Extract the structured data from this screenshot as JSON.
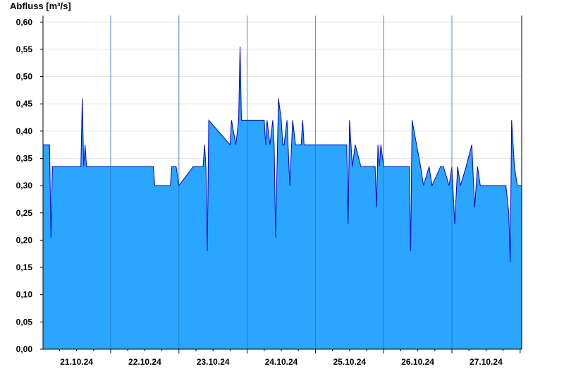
{
  "chart_data": {
    "type": "area",
    "ylabel": "Abfluss [m³/s]",
    "xlabel": "",
    "ylim": [
      0,
      0.612
    ],
    "x_start": "2024-10-21",
    "x_end": "2024-10-28",
    "yticks": [
      "0,00",
      "0,05",
      "0,10",
      "0,15",
      "0,20",
      "0,25",
      "0,30",
      "0,35",
      "0,40",
      "0,45",
      "0,50",
      "0,55",
      "0,60"
    ],
    "ytick_values": [
      0,
      0.05,
      0.1,
      0.15,
      0.2,
      0.25,
      0.3,
      0.35,
      0.4,
      0.45,
      0.5,
      0.55,
      0.6
    ],
    "xticks": [
      "21.10.24",
      "22.10.24",
      "23.10.24",
      "24.10.24",
      "25.10.24",
      "26.10.24",
      "27.10.24"
    ],
    "grid": true,
    "fill_color": "#2ba6ff",
    "line_color": "#0000cc",
    "series": [
      {
        "x": [
          "2024-10-20 16:00",
          "2024-10-21 02:30",
          "2024-10-21 03:00",
          "2024-10-21 03:30",
          "2024-10-21 04:00",
          "2024-10-21 13:30",
          "2024-10-21 14:00",
          "2024-10-21 14:30",
          "2024-10-21 15:00",
          "2024-10-21 15:30",
          "2024-10-21 16:00",
          "2024-10-22 15:00",
          "2024-10-22 15:30",
          "2024-10-22 16:00",
          "2024-10-22 21:00",
          "2024-10-22 21:30",
          "2024-10-22 23:00",
          "2024-10-23 00:00",
          "2024-10-23 05:00",
          "2024-10-23 05:30",
          "2024-10-23 06:00",
          "2024-10-23 08:30",
          "2024-10-23 09:00",
          "2024-10-23 09:30",
          "2024-10-23 10:00",
          "2024-10-23 10:30",
          "2024-10-23 18:00",
          "2024-10-23 18:30",
          "2024-10-23 20:00",
          "2024-10-23 21:00",
          "2024-10-23 21:30",
          "2024-10-23 22:00",
          "2024-10-23 22:30",
          "2024-10-23 23:00",
          "2024-10-24 06:00",
          "2024-10-24 06:30",
          "2024-10-24 07:00",
          "2024-10-24 08:00",
          "2024-10-24 09:00",
          "2024-10-24 09:30",
          "2024-10-24 10:00",
          "2024-10-24 11:00",
          "2024-10-24 12:00",
          "2024-10-24 12:30",
          "2024-10-24 13:00",
          "2024-10-24 14:00",
          "2024-10-24 15:00",
          "2024-10-24 16:00",
          "2024-10-24 17:00",
          "2024-10-24 18:00",
          "2024-10-24 19:00",
          "2024-10-24 19:30",
          "2024-10-24 20:00",
          "2024-10-24 21:00",
          "2024-10-25 11:00",
          "2024-10-25 11:30",
          "2024-10-25 12:00",
          "2024-10-25 13:00",
          "2024-10-25 14:00",
          "2024-10-25 16:00",
          "2024-10-25 17:00",
          "2024-10-25 21:00",
          "2024-10-25 21:30",
          "2024-10-25 22:00",
          "2024-10-25 22:30",
          "2024-10-25 23:00",
          "2024-10-26 00:00",
          "2024-10-26 09:00",
          "2024-10-26 09:30",
          "2024-10-26 10:00",
          "2024-10-26 13:00",
          "2024-10-26 14:00",
          "2024-10-26 16:00",
          "2024-10-26 17:00",
          "2024-10-26 20:00",
          "2024-10-26 21:00",
          "2024-10-26 23:00",
          "2024-10-27 00:00",
          "2024-10-27 01:00",
          "2024-10-27 02:00",
          "2024-10-27 03:00",
          "2024-10-27 05:00",
          "2024-10-27 07:00",
          "2024-10-27 08:00",
          "2024-10-27 09:00",
          "2024-10-27 10:00",
          "2024-10-27 13:00",
          "2024-10-27 19:00",
          "2024-10-27 20:00",
          "2024-10-27 20:30",
          "2024-10-27 21:00",
          "2024-10-27 22:00",
          "2024-10-27 23:00",
          "2024-10-28 00:00"
        ],
        "values": [
          0.375,
          0.375,
          0.205,
          0.335,
          0.335,
          0.335,
          0.46,
          0.335,
          0.375,
          0.335,
          0.335,
          0.335,
          0.3,
          0.3,
          0.3,
          0.335,
          0.335,
          0.3,
          0.335,
          0.335,
          0.335,
          0.335,
          0.375,
          0.335,
          0.18,
          0.42,
          0.375,
          0.42,
          0.375,
          0.42,
          0.555,
          0.42,
          0.42,
          0.42,
          0.42,
          0.375,
          0.42,
          0.375,
          0.42,
          0.375,
          0.205,
          0.46,
          0.42,
          0.375,
          0.375,
          0.42,
          0.3,
          0.42,
          0.375,
          0.375,
          0.375,
          0.42,
          0.375,
          0.375,
          0.375,
          0.23,
          0.42,
          0.335,
          0.375,
          0.335,
          0.335,
          0.335,
          0.26,
          0.375,
          0.335,
          0.375,
          0.335,
          0.335,
          0.18,
          0.42,
          0.335,
          0.3,
          0.335,
          0.3,
          0.335,
          0.335,
          0.3,
          0.335,
          0.23,
          0.335,
          0.3,
          0.335,
          0.375,
          0.26,
          0.335,
          0.3,
          0.3,
          0.3,
          0.25,
          0.16,
          0.42,
          0.335,
          0.3,
          0.3
        ]
      }
    ]
  }
}
